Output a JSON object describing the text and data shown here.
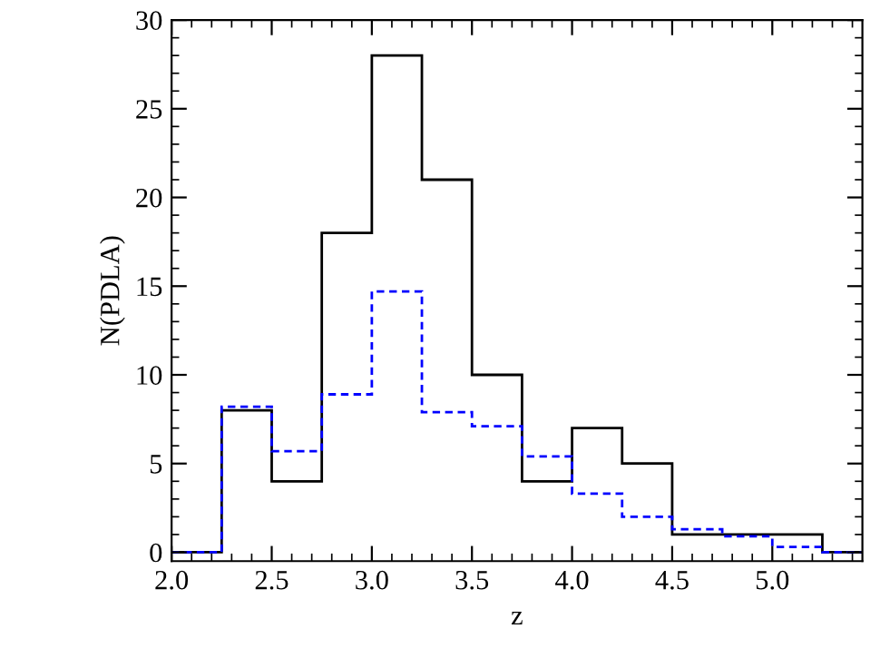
{
  "chart_data": {
    "type": "histogram",
    "xlabel": "z",
    "ylabel": "N(PDLA)",
    "bins": [
      2.0,
      2.25,
      2.5,
      2.75,
      3.0,
      3.25,
      3.5,
      3.75,
      4.0,
      4.25,
      4.5,
      4.75,
      5.0,
      5.25,
      5.5
    ],
    "series": [
      {
        "color": "#000000",
        "line_style": "solid",
        "values": [
          0,
          8,
          4,
          18,
          28,
          21,
          10,
          4,
          7,
          5,
          1,
          1,
          1,
          0
        ]
      },
      {
        "color": "#0000ff",
        "line_style": "dashed",
        "values": [
          0,
          8.2,
          5.7,
          8.9,
          14.7,
          7.9,
          7.1,
          5.4,
          3.3,
          2.0,
          1.3,
          0.9,
          0.3,
          0
        ]
      }
    ],
    "xlim": [
      2.0,
      5.45
    ],
    "ylim": [
      -0.5,
      30
    ],
    "xticks": [
      {
        "value": 2,
        "label": "2.0"
      },
      2.5,
      {
        "value": 3,
        "label": "3.0"
      },
      3.5,
      {
        "value": 4,
        "label": "4.0"
      },
      4.5,
      {
        "value": 5,
        "label": "5.0"
      }
    ],
    "yticks": [
      0,
      5,
      10,
      15,
      20,
      25,
      30
    ],
    "grid": false,
    "legend": false
  }
}
